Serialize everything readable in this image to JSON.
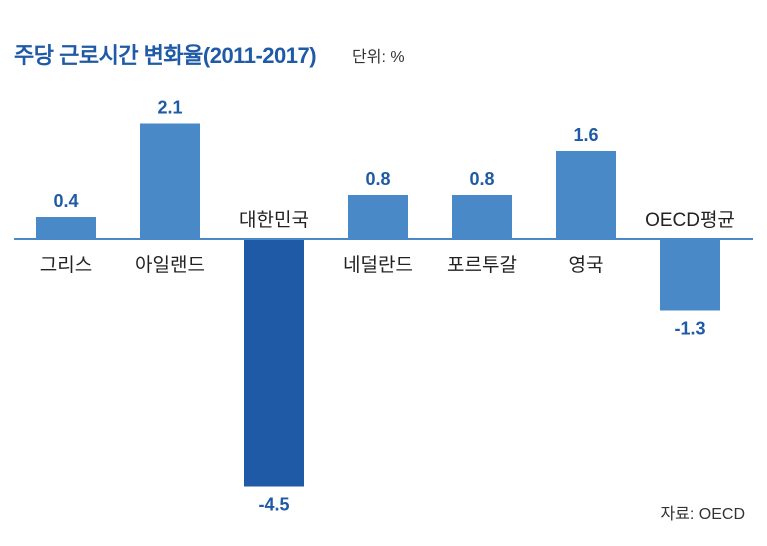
{
  "header": {
    "title": "주당 근로시간 변화율(2011-2017)",
    "unit": "단위: %"
  },
  "footer": {
    "source": "자료: OECD"
  },
  "colors": {
    "bar": "#4a89c8",
    "highlight_bar": "#1f5aa6",
    "axis": "#4a89c8",
    "value_text": "#1f5aa6"
  },
  "chart_data": {
    "type": "bar",
    "title": "주당 근로시간 변화율(2011-2017)",
    "unit": "단위: %",
    "categories": [
      "그리스",
      "아일랜드",
      "대한민국",
      "네덜란드",
      "포르투갈",
      "영국",
      "OECD평균"
    ],
    "values": [
      0.4,
      2.1,
      -4.5,
      0.8,
      0.8,
      1.6,
      -1.3
    ],
    "value_labels": [
      "0.4",
      "2.1",
      "-4.5",
      "0.8",
      "0.8",
      "1.6",
      "-1.3"
    ],
    "highlight_category": "대한민국",
    "ylim": [
      -4.5,
      2.1
    ],
    "grid": false,
    "legend": "none"
  }
}
